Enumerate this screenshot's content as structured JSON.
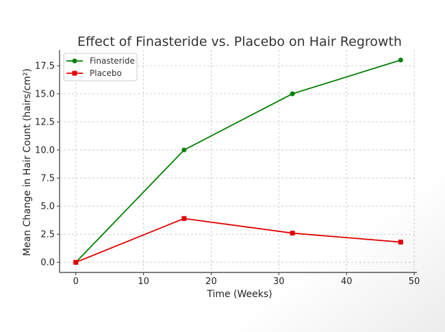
{
  "chart_data": {
    "type": "line",
    "title": "Effect of Finasteride vs. Placebo on Hair Regrowth",
    "xlabel": "Time (Weeks)",
    "ylabel": "Mean Change in Hair Count (hairs/cm²)",
    "xlim": [
      -2.4,
      50.4
    ],
    "ylim": [
      -0.9,
      18.9
    ],
    "xticks": [
      0,
      10,
      20,
      30,
      40,
      50
    ],
    "yticks": [
      0.0,
      2.5,
      5.0,
      7.5,
      10.0,
      12.5,
      15.0,
      17.5
    ],
    "ytick_labels": [
      "0.0",
      "2.5",
      "5.0",
      "7.5",
      "10.0",
      "12.5",
      "15.0",
      "17.5"
    ],
    "grid": true,
    "legend_position": "top-left",
    "x": [
      0,
      16,
      32,
      48
    ],
    "series": [
      {
        "name": "Finasteride",
        "values": [
          0,
          10,
          15,
          18
        ],
        "color": "#008000",
        "marker": "circle"
      },
      {
        "name": "Placebo",
        "values": [
          0,
          3.9,
          2.6,
          1.8
        ],
        "color": "#e00000",
        "marker": "square"
      }
    ]
  }
}
